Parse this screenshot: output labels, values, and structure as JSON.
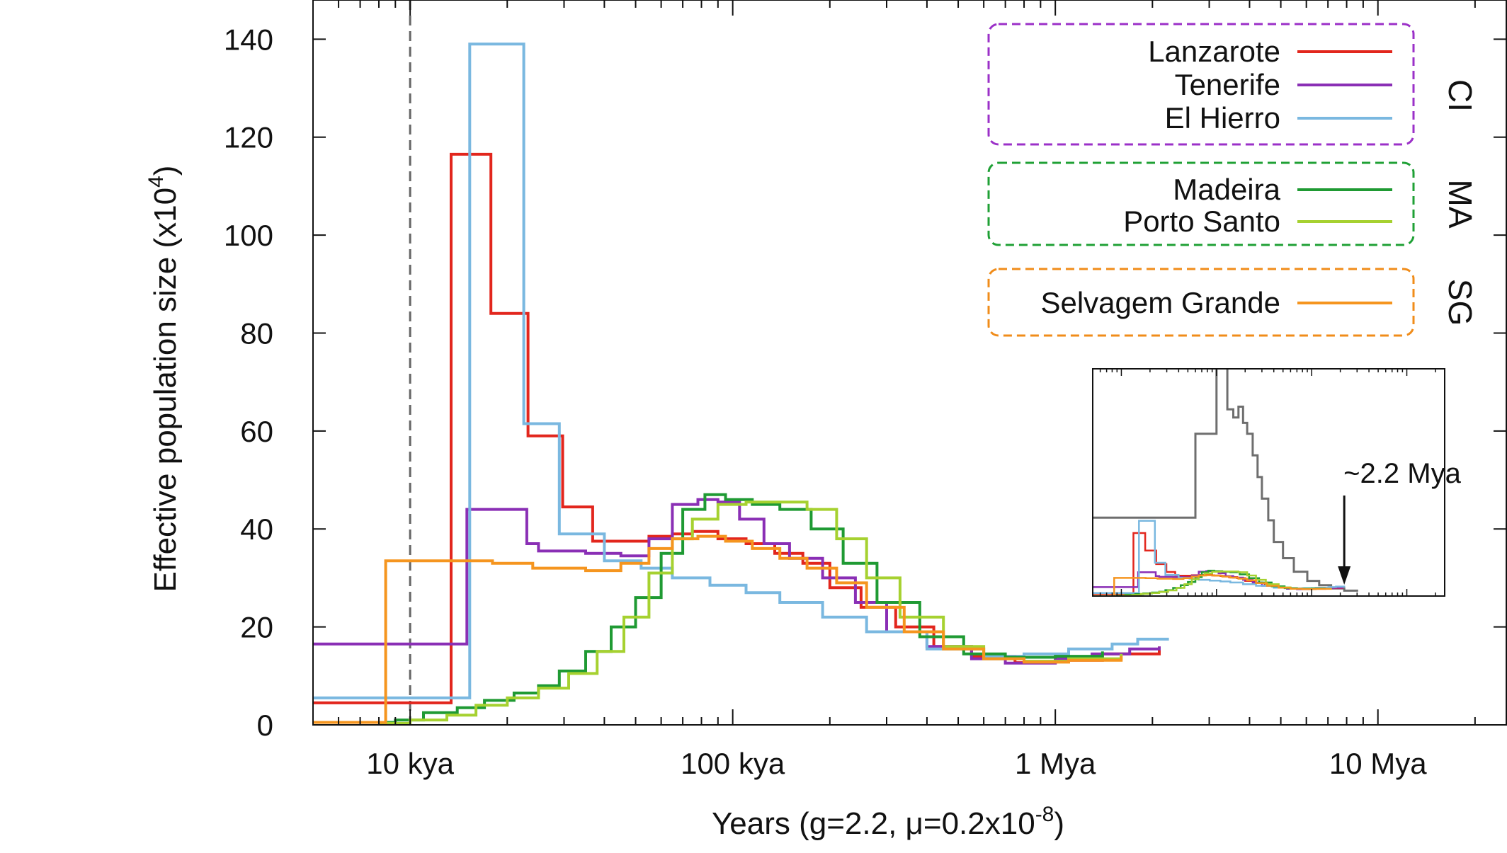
{
  "chart_data": {
    "type": "line",
    "step": true,
    "x_scale": "log",
    "xlim": [
      5000,
      25000000
    ],
    "ylim": [
      0,
      148
    ],
    "xlabel": "Years (g=2.2, μ=0.2x10",
    "xlabel_exp": "-8",
    "xlabel_close": ")",
    "ylabel": "Effective population size (x10",
    "ylabel_exp": "4",
    "ylabel_close": ")",
    "x_ticks": [
      {
        "value": 10000,
        "label": "10 kya"
      },
      {
        "value": 100000,
        "label": "100 kya"
      },
      {
        "value": 1000000,
        "label": "1 Mya"
      },
      {
        "value": 10000000,
        "label": "10 Mya"
      }
    ],
    "y_ticks": [
      {
        "value": 0,
        "label": "0"
      },
      {
        "value": 20,
        "label": "20"
      },
      {
        "value": 40,
        "label": "40"
      },
      {
        "value": 60,
        "label": "60"
      },
      {
        "value": 80,
        "label": "80"
      },
      {
        "value": 100,
        "label": "100"
      },
      {
        "value": 120,
        "label": "120"
      },
      {
        "value": 140,
        "label": "140"
      }
    ],
    "reference_line_x": 10000,
    "grid": false,
    "legend_groups": [
      {
        "label": "CI",
        "color": "#9b30c8",
        "entries": [
          "Lanzarote",
          "Tenerife",
          "El Hierro"
        ]
      },
      {
        "label": "MA",
        "color": "#1fa035",
        "entries": [
          "Madeira",
          "Porto Santo"
        ]
      },
      {
        "label": "SG",
        "color": "#f08c1a",
        "entries": [
          "Selvagem Grande"
        ]
      }
    ],
    "series": [
      {
        "name": "Lanzarote",
        "color": "#e2261d",
        "x": [
          5000,
          13400,
          17800,
          23200,
          29700,
          36800,
          45000,
          55000,
          65000,
          75000,
          90000,
          110000,
          135000,
          165000,
          200000,
          250000,
          320000,
          420000,
          550000,
          750000,
          1000000,
          1400000,
          2100000
        ],
        "y": [
          4.5,
          116.5,
          84,
          59,
          44.5,
          37.5,
          37.5,
          38.5,
          39,
          39.5,
          38,
          37,
          35,
          33,
          28,
          24,
          20,
          16,
          14,
          12.7,
          13.2,
          14.5,
          16
        ]
      },
      {
        "name": "Tenerife",
        "color": "#8a2fb5",
        "x": [
          5000,
          15000,
          23000,
          25000,
          35000,
          45000,
          55000,
          65000,
          78000,
          90000,
          105000,
          125000,
          150000,
          190000,
          240000,
          300000,
          400000,
          550000,
          700000,
          1000000,
          1300000,
          1700000,
          2100000
        ],
        "y": [
          16.5,
          44,
          37,
          35.5,
          35,
          34.5,
          38,
          45,
          46,
          45.5,
          42,
          37,
          34,
          30,
          25,
          19,
          16,
          13.5,
          12.6,
          13.5,
          14.5,
          15.5,
          16
        ]
      },
      {
        "name": "El Hierro",
        "color": "#7ab8e0",
        "x": [
          5000,
          15300,
          22500,
          29000,
          40000,
          52000,
          65000,
          85000,
          110000,
          140000,
          190000,
          260000,
          400000,
          600000,
          800000,
          1100000,
          1500000,
          1800000,
          2250000
        ],
        "y": [
          5.5,
          139,
          61.5,
          39,
          33.5,
          32,
          30,
          28.5,
          27,
          25,
          22,
          19,
          15.5,
          14,
          14.5,
          15.5,
          16.5,
          17.5,
          17.5
        ]
      },
      {
        "name": "Madeira",
        "color": "#1f9a33",
        "x": [
          8000,
          9000,
          11000,
          14000,
          17000,
          21000,
          25000,
          29000,
          35000,
          42000,
          50000,
          60000,
          70000,
          82000,
          95000,
          115000,
          140000,
          175000,
          220000,
          280000,
          380000,
          520000,
          700000,
          1000000,
          1400000
        ],
        "y": [
          0.5,
          1,
          2.5,
          3.5,
          5,
          6.5,
          8,
          11,
          15,
          20,
          26,
          35,
          44,
          47,
          46,
          45,
          44,
          40,
          33,
          25,
          18,
          14.5,
          13.8,
          14,
          15
        ]
      },
      {
        "name": "Porto Santo",
        "color": "#a6d130",
        "x": [
          8000,
          10000,
          13000,
          16000,
          20000,
          25000,
          31000,
          38000,
          46000,
          55000,
          65000,
          75000,
          90000,
          110000,
          140000,
          170000,
          210000,
          260000,
          330000,
          450000,
          600000,
          800000,
          1100000,
          1600000
        ],
        "y": [
          0.3,
          1,
          2,
          4,
          5.5,
          7.5,
          10.5,
          15,
          22,
          31,
          38,
          42,
          45,
          45.5,
          45.5,
          44,
          38,
          30,
          22,
          16,
          13.5,
          13,
          13.5,
          14.5
        ]
      },
      {
        "name": "Selvagem Grande",
        "color": "#f5951f",
        "x": [
          5000,
          8400,
          18000,
          24000,
          35000,
          45000,
          55000,
          65000,
          78000,
          95000,
          115000,
          140000,
          170000,
          210000,
          260000,
          340000,
          450000,
          600000,
          800000,
          1100000,
          1600000
        ],
        "y": [
          0.5,
          33.5,
          33,
          32,
          31.5,
          33,
          36,
          38,
          38.5,
          37.5,
          36,
          34,
          32,
          29,
          24,
          19,
          15.5,
          13.5,
          12.8,
          13.2,
          14
        ]
      }
    ],
    "inset": {
      "xlim": [
        5000,
        25000000
      ],
      "ylim": [
        0,
        420
      ],
      "annotation": "~2.2 Mya",
      "annotation_x": 2200000,
      "reference": {
        "name": "",
        "color": "#6e6e6e",
        "x": [
          5000,
          60000,
          100000,
          130000,
          150000,
          170000,
          190000,
          210000,
          240000,
          270000,
          300000,
          350000,
          400000,
          500000,
          650000,
          900000,
          1200000,
          1600000,
          2200000,
          3000000
        ],
        "y": [
          145,
          300,
          440,
          345,
          330,
          350,
          320,
          300,
          260,
          220,
          180,
          140,
          100,
          70,
          45,
          28,
          20,
          14,
          10,
          8
        ]
      }
    }
  }
}
